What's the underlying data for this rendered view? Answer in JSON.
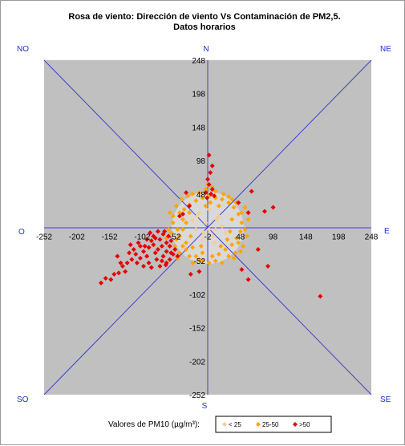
{
  "chart_data": {
    "type": "scatter",
    "title": "Rosa de viento: Dirección de viento Vs Contaminación de PM2,5.",
    "subtitle": "Datos horarios",
    "xlim": [
      -252,
      248
    ],
    "ylim": [
      -252,
      248
    ],
    "xticks": [
      "-252",
      "-202",
      "-152",
      "-102",
      "-52",
      "-2",
      "48",
      "98",
      "148",
      "198",
      "248"
    ],
    "yticks": [
      "248",
      "198",
      "148",
      "98",
      "48",
      "-2",
      "-52",
      "-102",
      "-152",
      "-202",
      "-252"
    ],
    "directions": {
      "N": "N",
      "S": "S",
      "E": "E",
      "O": "O",
      "NO": "NO",
      "NE": "NE",
      "SO": "SO",
      "SE": "SE"
    },
    "plot_background": "#c0c0c0",
    "axis_color": "#3f3fcf",
    "center_circle_color": "#d9d9d9",
    "legend": {
      "title": "Valores de PM10 (µg/m³):",
      "entries": [
        {
          "label": "< 25",
          "color": "#f5cc9a"
        },
        {
          "label": "25-50",
          "color": "#ffa500"
        },
        {
          "label": ">50",
          "color": "#e60000"
        }
      ]
    },
    "series": [
      {
        "name": "< 25",
        "color": "#f5cc9a",
        "points": [
          [
            -15,
            20
          ],
          [
            0,
            25
          ],
          [
            15,
            15
          ],
          [
            -5,
            5
          ],
          [
            10,
            -5
          ],
          [
            -20,
            -5
          ],
          [
            5,
            -15
          ],
          [
            -10,
            -20
          ],
          [
            20,
            0
          ],
          [
            -25,
            8
          ],
          [
            0,
            -5
          ],
          [
            12,
            10
          ],
          [
            -8,
            -10
          ],
          [
            25,
            -10
          ],
          [
            -18,
            15
          ],
          [
            8,
            -25
          ]
        ]
      },
      {
        "name": "25-50",
        "color": "#ffa500",
        "points": [
          [
            -45,
            20
          ],
          [
            -40,
            10
          ],
          [
            -48,
            -5
          ],
          [
            -45,
            -15
          ],
          [
            -35,
            -25
          ],
          [
            -25,
            -32
          ],
          [
            -10,
            -40
          ],
          [
            5,
            -45
          ],
          [
            15,
            -42
          ],
          [
            25,
            -35
          ],
          [
            35,
            -28
          ],
          [
            42,
            -18
          ],
          [
            48,
            -8
          ],
          [
            50,
            5
          ],
          [
            45,
            18
          ],
          [
            38,
            28
          ],
          [
            30,
            35
          ],
          [
            20,
            40
          ],
          [
            10,
            42
          ],
          [
            0,
            45
          ],
          [
            -10,
            42
          ],
          [
            -20,
            38
          ],
          [
            -30,
            32
          ],
          [
            -38,
            25
          ],
          [
            -55,
            5
          ],
          [
            -58,
            -10
          ],
          [
            -50,
            -20
          ],
          [
            -30,
            -45
          ],
          [
            -15,
            -50
          ],
          [
            55,
            -5
          ],
          [
            60,
            10
          ],
          [
            40,
            -40
          ],
          [
            45,
            -25
          ],
          [
            -5,
            55
          ],
          [
            5,
            58
          ],
          [
            -2,
            62
          ],
          [
            10,
            52
          ],
          [
            -60,
            20
          ],
          [
            -42,
            40
          ],
          [
            -32,
            45
          ],
          [
            -50,
            30
          ],
          [
            -55,
            15
          ],
          [
            -35,
            -35
          ],
          [
            -45,
            -40
          ],
          [
            -40,
            -30
          ],
          [
            30,
            -45
          ],
          [
            38,
            -48
          ],
          [
            48,
            -38
          ],
          [
            52,
            -30
          ],
          [
            22,
            48
          ],
          [
            30,
            44
          ],
          [
            35,
            40
          ],
          [
            42,
            35
          ],
          [
            50,
            20
          ],
          [
            -20,
            -45
          ],
          [
            -10,
            -52
          ],
          [
            0,
            -55
          ],
          [
            10,
            -52
          ],
          [
            58,
            -15
          ],
          [
            55,
            28
          ],
          [
            -62,
            -5
          ],
          [
            -65,
            -18
          ],
          [
            -48,
            -48
          ],
          [
            -25,
            -55
          ],
          [
            20,
            -55
          ],
          [
            -15,
            50
          ],
          [
            -25,
            48
          ],
          [
            -52,
            -30
          ],
          [
            2,
            35
          ],
          [
            -30,
            20
          ],
          [
            28,
            -20
          ],
          [
            15,
            30
          ],
          [
            -28,
            -15
          ],
          [
            35,
            10
          ],
          [
            -12,
            -30
          ],
          [
            32,
            -8
          ],
          [
            -35,
            5
          ],
          [
            18,
            -30
          ],
          [
            -5,
            30
          ],
          [
            -40,
            -5
          ]
        ]
      },
      {
        "name": ">50",
        "color": "#e60000",
        "points": [
          [
            0,
            106
          ],
          [
            5,
            90
          ],
          [
            2,
            80
          ],
          [
            -2,
            70
          ],
          [
            0,
            62
          ],
          [
            5,
            55
          ],
          [
            -5,
            50
          ],
          [
            3,
            48
          ],
          [
            -3,
            42
          ],
          [
            8,
            45
          ],
          [
            -35,
            50
          ],
          [
            -45,
            15
          ],
          [
            -30,
            30
          ],
          [
            -40,
            18
          ],
          [
            65,
            52
          ],
          [
            60,
            20
          ],
          [
            45,
            35
          ],
          [
            85,
            22
          ],
          [
            98,
            28
          ],
          [
            75,
            -35
          ],
          [
            90,
            -60
          ],
          [
            170,
            -105
          ],
          [
            50,
            -65
          ],
          [
            60,
            -80
          ],
          [
            -15,
            -68
          ],
          [
            -28,
            -72
          ],
          [
            -48,
            -45
          ],
          [
            -55,
            -42
          ],
          [
            -60,
            -50
          ],
          [
            -65,
            -38
          ],
          [
            -70,
            -45
          ],
          [
            -72,
            -30
          ],
          [
            -78,
            -35
          ],
          [
            -82,
            -40
          ],
          [
            -85,
            -28
          ],
          [
            -88,
            -22
          ],
          [
            -92,
            -32
          ],
          [
            -95,
            -45
          ],
          [
            -100,
            -38
          ],
          [
            -105,
            -30
          ],
          [
            -108,
            -25
          ],
          [
            -112,
            -42
          ],
          [
            -115,
            -35
          ],
          [
            -118,
            -50
          ],
          [
            -122,
            -40
          ],
          [
            -125,
            -55
          ],
          [
            -128,
            -68
          ],
          [
            -132,
            -60
          ],
          [
            -138,
            -70
          ],
          [
            -145,
            -72
          ],
          [
            -150,
            -80
          ],
          [
            -158,
            -78
          ],
          [
            -165,
            -85
          ],
          [
            -135,
            -55
          ],
          [
            -140,
            -45
          ],
          [
            -110,
            -55
          ],
          [
            -100,
            -60
          ],
          [
            -95,
            -20
          ],
          [
            -90,
            -10
          ],
          [
            -85,
            -15
          ],
          [
            -75,
            -20
          ],
          [
            -70,
            -12
          ],
          [
            -65,
            -25
          ],
          [
            -60,
            -30
          ],
          [
            -62,
            -15
          ],
          [
            -58,
            -22
          ],
          [
            -80,
            -50
          ],
          [
            -92,
            -55
          ],
          [
            -105,
            -48
          ],
          [
            -75,
            -60
          ],
          [
            -65,
            -55
          ],
          [
            -88,
            -62
          ],
          [
            -98,
            -30
          ],
          [
            -120,
            -28
          ],
          [
            -78,
            -8
          ],
          [
            -82,
            -18
          ],
          [
            -68,
            -8
          ],
          [
            -72,
            -52
          ],
          [
            -58,
            -40
          ],
          [
            -66,
            -58
          ],
          [
            -52,
            -35
          ]
        ]
      }
    ]
  }
}
